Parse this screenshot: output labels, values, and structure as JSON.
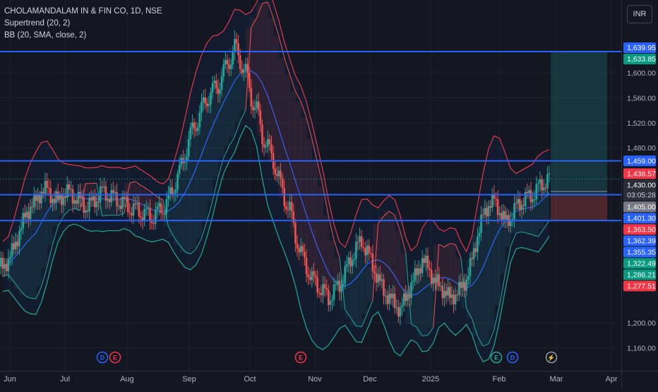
{
  "header": {
    "symbol_line": "CHOLAMANDALAM IN & FIN CO, 1D, NSE",
    "indicator_1": "Supertrend (20, 2)",
    "indicator_2": "BB (20, SMA, close, 2)",
    "currency": "INR"
  },
  "colors": {
    "background": "#131722",
    "up": "#26a69a",
    "down": "#ef5350",
    "bb_upper": "#e0394d",
    "bb_lower": "#22ab94",
    "bb_basis": "#2962ff",
    "hline": "#2962ff",
    "target_zone": "#26a69a",
    "stop_zone": "#ef5350"
  },
  "chart_data": {
    "type": "candlestick",
    "x_axis": {
      "labels": [
        "Jun",
        "Jul",
        "Aug",
        "Sep",
        "Oct",
        "Nov",
        "Dec",
        "2025",
        "Feb",
        "Mar",
        "Apr"
      ]
    },
    "y_axis": {
      "range": [
        1140,
        1680
      ],
      "ticks": [
        1160.0,
        1200.0,
        1480.0,
        1520.0,
        1560.0,
        1600.0
      ]
    },
    "y_tick_labels": [
      "1,160.00",
      "1,200.00",
      "1,480.00",
      "1,520.00",
      "1,560.00",
      "1,600.00"
    ],
    "horizontal_levels": [
      1633.85,
      1459.0,
      1405.0,
      1363.5
    ],
    "price_tags": [
      {
        "label": "1,639.95",
        "value": 1639.95,
        "color": "#2962ff"
      },
      {
        "label": "1,633.85",
        "value": 1633.85,
        "color": "#089981"
      },
      {
        "label": "1,459.00",
        "value": 1459.0,
        "color": "#2962ff"
      },
      {
        "label": "1,438.57",
        "value": 1438.57,
        "color": "#f23645"
      },
      {
        "label": "1,430.00",
        "value": 1430.0,
        "color": "#2a2e39",
        "sub": "03:05:28"
      },
      {
        "label": "1,405.00",
        "value": 1405.0,
        "color": "#787b86"
      },
      {
        "label": "1,401.30",
        "value": 1401.3,
        "color": "#2962ff"
      },
      {
        "label": "1,363.50",
        "value": 1363.5,
        "color": "#f23645"
      },
      {
        "label": "1,362.39",
        "value": 1362.39,
        "color": "#2962ff"
      },
      {
        "label": "1,355.35",
        "value": 1355.35,
        "color": "#2962ff"
      },
      {
        "label": "1,322.49",
        "value": 1322.49,
        "color": "#089981"
      },
      {
        "label": "1,286.21",
        "value": 1286.21,
        "color": "#089981"
      },
      {
        "label": "1,277.51",
        "value": 1277.51,
        "color": "#f23645"
      }
    ],
    "trade_zone": {
      "entry": 1405.0,
      "target": 1633.85,
      "stop": 1363.5
    },
    "close_approx": [
      1290,
      1300,
      1320,
      1345,
      1370,
      1385,
      1395,
      1410,
      1415,
      1400,
      1395,
      1405,
      1410,
      1400,
      1395,
      1385,
      1390,
      1400,
      1410,
      1405,
      1400,
      1395,
      1390,
      1385,
      1380,
      1378,
      1372,
      1370,
      1375,
      1385,
      1395,
      1420,
      1440,
      1470,
      1500,
      1520,
      1540,
      1560,
      1570,
      1580,
      1600,
      1620,
      1640,
      1620,
      1600,
      1560,
      1540,
      1500,
      1480,
      1460,
      1430,
      1400,
      1380,
      1340,
      1310,
      1290,
      1270,
      1260,
      1250,
      1240,
      1250,
      1260,
      1280,
      1300,
      1320,
      1330,
      1315,
      1290,
      1270,
      1250,
      1240,
      1230,
      1220,
      1240,
      1260,
      1280,
      1300,
      1290,
      1270,
      1260,
      1250,
      1240,
      1245,
      1255,
      1270,
      1300,
      1340,
      1370,
      1390,
      1395,
      1380,
      1360,
      1370,
      1385,
      1395,
      1400,
      1405,
      1415,
      1425,
      1430
    ],
    "event_markers": [
      {
        "label": "D",
        "kind": "dividend"
      },
      {
        "label": "E",
        "kind": "earnings"
      },
      {
        "label": "E",
        "kind": "earnings"
      },
      {
        "label": "E",
        "kind": "earnings"
      },
      {
        "label": "D",
        "kind": "dividend"
      },
      {
        "label": "⚡",
        "kind": "event"
      }
    ]
  }
}
